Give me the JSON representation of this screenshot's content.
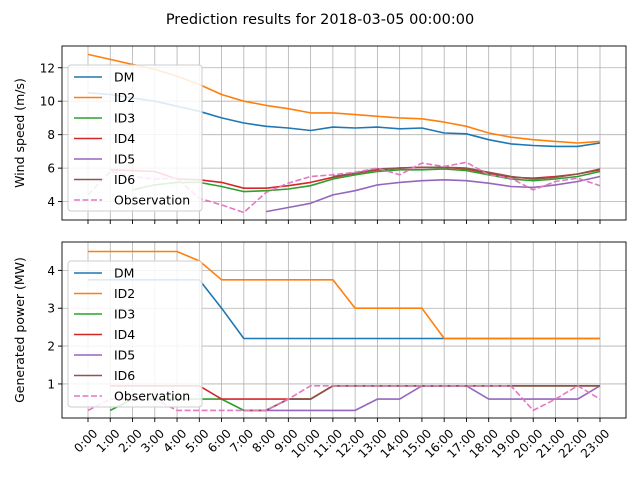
{
  "title": "Prediction results for 2018-03-05 00:00:00",
  "colors": {
    "DM": "#1f77b4",
    "ID2": "#ff7f0e",
    "ID3": "#2ca02c",
    "ID4": "#d62728",
    "ID5": "#9467bd",
    "ID6": "#8c564b",
    "Observation": "#e377c2"
  },
  "chart_data": [
    {
      "type": "line",
      "ylabel": "Wind speed (m/s)",
      "xlabel": "",
      "ylim": [
        2.9,
        13.3
      ],
      "yticks": [
        4,
        6,
        8,
        10,
        12
      ],
      "grid": true,
      "legend_position": "upper-left",
      "x": [
        "0:00",
        "1:00",
        "2:00",
        "3:00",
        "4:00",
        "5:00",
        "6:00",
        "7:00",
        "8:00",
        "9:00",
        "10:00",
        "11:00",
        "12:00",
        "13:00",
        "14:00",
        "15:00",
        "16:00",
        "17:00",
        "18:00",
        "19:00",
        "20:00",
        "21:00",
        "22:00",
        "23:00"
      ],
      "series": [
        {
          "name": "DM",
          "key": "DM",
          "style": "solid",
          "values": [
            10.5,
            10.4,
            10.2,
            10.0,
            9.7,
            9.4,
            9.0,
            8.7,
            8.5,
            8.4,
            8.25,
            8.45,
            8.4,
            8.45,
            8.35,
            8.4,
            8.1,
            8.05,
            7.7,
            7.45,
            7.35,
            7.3,
            7.3,
            7.5
          ]
        },
        {
          "name": "ID2",
          "key": "ID2",
          "style": "solid",
          "values": [
            12.8,
            12.5,
            12.2,
            11.9,
            11.5,
            11.0,
            10.4,
            10.0,
            9.75,
            9.55,
            9.3,
            9.3,
            9.2,
            9.1,
            9.0,
            8.95,
            8.75,
            8.5,
            8.1,
            7.85,
            7.7,
            7.6,
            7.5,
            7.6
          ]
        },
        {
          "name": "ID3",
          "key": "ID3",
          "style": "solid",
          "values": [
            null,
            null,
            4.7,
            5.0,
            5.15,
            5.15,
            4.9,
            4.6,
            4.65,
            4.75,
            4.95,
            5.35,
            5.6,
            5.8,
            5.9,
            5.9,
            5.95,
            5.85,
            5.6,
            5.35,
            5.25,
            5.35,
            5.5,
            5.8
          ]
        },
        {
          "name": "ID4",
          "key": "ID4",
          "style": "solid",
          "values": [
            null,
            5.9,
            5.85,
            5.8,
            5.35,
            5.3,
            5.15,
            4.8,
            4.8,
            4.95,
            5.15,
            5.45,
            5.7,
            5.9,
            6.0,
            6.05,
            6.05,
            5.95,
            5.7,
            5.45,
            5.4,
            5.5,
            5.65,
            5.9
          ]
        },
        {
          "name": "ID5",
          "key": "ID5",
          "style": "solid",
          "values": [
            null,
            null,
            null,
            null,
            null,
            null,
            null,
            null,
            3.4,
            3.65,
            3.9,
            4.4,
            4.65,
            5.0,
            5.15,
            5.25,
            5.3,
            5.25,
            5.1,
            4.9,
            4.85,
            5.0,
            5.2,
            5.5
          ]
        },
        {
          "name": "ID6",
          "key": "ID6",
          "style": "solid",
          "values": [
            null,
            null,
            null,
            null,
            null,
            null,
            null,
            null,
            null,
            null,
            null,
            5.5,
            5.7,
            5.95,
            6.0,
            6.05,
            6.05,
            6.0,
            5.75,
            5.5,
            5.35,
            5.45,
            5.65,
            5.95
          ]
        },
        {
          "name": "Observation",
          "key": "Observation",
          "style": "dashed",
          "values": [
            4.4,
            5.8,
            5.5,
            5.35,
            5.4,
            4.2,
            3.8,
            3.35,
            4.55,
            5.1,
            5.5,
            5.6,
            5.75,
            6.0,
            5.6,
            6.3,
            6.1,
            6.35,
            5.6,
            5.4,
            4.7,
            5.2,
            5.4,
            4.95
          ]
        }
      ]
    },
    {
      "type": "line",
      "ylabel": "Generated power (MW)",
      "xlabel": "",
      "ylim": [
        0.1,
        4.75
      ],
      "yticks": [
        1,
        2,
        3,
        4
      ],
      "grid": true,
      "legend_position": "upper-left",
      "x": [
        "0:00",
        "1:00",
        "2:00",
        "3:00",
        "4:00",
        "5:00",
        "6:00",
        "7:00",
        "8:00",
        "9:00",
        "10:00",
        "11:00",
        "12:00",
        "13:00",
        "14:00",
        "15:00",
        "16:00",
        "17:00",
        "18:00",
        "19:00",
        "20:00",
        "21:00",
        "22:00",
        "23:00"
      ],
      "series": [
        {
          "name": "DM",
          "key": "DM",
          "style": "solid",
          "values": [
            3.75,
            3.75,
            3.75,
            3.75,
            3.75,
            3.75,
            3.0,
            2.2,
            2.2,
            2.2,
            2.2,
            2.2,
            2.2,
            2.2,
            2.2,
            2.2,
            2.2,
            2.2,
            2.2,
            2.2,
            2.2,
            2.2,
            2.2,
            2.2
          ]
        },
        {
          "name": "ID2",
          "key": "ID2",
          "style": "solid",
          "values": [
            4.5,
            4.5,
            4.5,
            4.5,
            4.5,
            4.25,
            3.75,
            3.75,
            3.75,
            3.75,
            3.75,
            3.75,
            3.0,
            3.0,
            3.0,
            3.0,
            2.2,
            2.2,
            2.2,
            2.2,
            2.2,
            2.2,
            2.2,
            2.2
          ]
        },
        {
          "name": "ID3",
          "key": "ID3",
          "style": "solid",
          "values": [
            null,
            0.3,
            0.6,
            0.6,
            0.6,
            0.6,
            0.6,
            0.3,
            0.3,
            0.6,
            0.6,
            0.95,
            0.95,
            0.95,
            0.95,
            0.95,
            0.95,
            0.95,
            0.95,
            0.95,
            0.95,
            0.95,
            0.95,
            0.95
          ]
        },
        {
          "name": "ID4",
          "key": "ID4",
          "style": "solid",
          "values": [
            null,
            0.95,
            0.95,
            0.95,
            0.95,
            0.95,
            0.6,
            0.6,
            0.6,
            0.6,
            0.6,
            0.95,
            0.95,
            0.95,
            0.95,
            0.95,
            0.95,
            0.95,
            0.95,
            0.95,
            0.95,
            0.95,
            0.95,
            0.95
          ]
        },
        {
          "name": "ID5",
          "key": "ID5",
          "style": "solid",
          "values": [
            null,
            null,
            null,
            null,
            null,
            null,
            null,
            null,
            0.3,
            0.3,
            0.3,
            0.3,
            0.3,
            0.6,
            0.6,
            0.95,
            0.95,
            0.95,
            0.6,
            0.6,
            0.6,
            0.6,
            0.6,
            0.95
          ]
        },
        {
          "name": "ID6",
          "key": "ID6",
          "style": "solid",
          "values": [
            null,
            null,
            null,
            null,
            null,
            null,
            null,
            0.3,
            0.3,
            0.6,
            0.6,
            0.95,
            0.95,
            0.95,
            0.95,
            0.95,
            0.95,
            0.95,
            0.95,
            0.95,
            0.95,
            0.95,
            0.95,
            0.95
          ]
        },
        {
          "name": "Observation",
          "key": "Observation",
          "style": "dashed",
          "values": [
            0.3,
            0.6,
            0.6,
            0.6,
            0.3,
            0.3,
            0.3,
            0.3,
            0.3,
            0.6,
            0.95,
            0.95,
            0.95,
            0.95,
            0.95,
            0.95,
            0.95,
            0.95,
            0.95,
            0.95,
            0.3,
            0.6,
            0.95,
            0.6
          ]
        }
      ]
    }
  ]
}
